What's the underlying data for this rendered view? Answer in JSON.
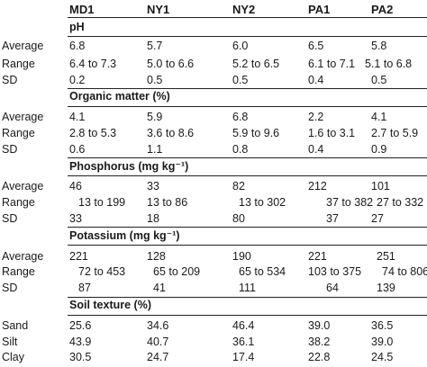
{
  "columns": [
    "MD1",
    "NY1",
    "NY2",
    "PA1",
    "PA2"
  ],
  "sections": [
    {
      "title": "pH",
      "rows": [
        {
          "label": "Average",
          "cells": [
            "6.8",
            "5.7",
            "6.0",
            "6.5",
            "5.8"
          ]
        },
        {
          "label": "Range",
          "cells": [
            "6.4 to 7.3",
            "5.0 to 6.6",
            "5.2 to 6.5",
            "6.1 to 7.1",
            "5.1 to 6.8"
          ]
        },
        {
          "label": "SD",
          "cells": [
            "0.2",
            "0.5",
            "0.5",
            "0.4",
            "0.5"
          ]
        }
      ]
    },
    {
      "title": "Organic matter (%)",
      "rows": [
        {
          "label": "Average",
          "cells": [
            "4.1",
            "5.9",
            "6.8",
            "2.2",
            "4.1"
          ]
        },
        {
          "label": "Range",
          "cells": [
            "2.8 to 5.3",
            "3.6 to 8.6",
            "5.9 to 9.6",
            "1.6 to 3.1",
            "2.7 to 5.9"
          ]
        },
        {
          "label": "SD",
          "cells": [
            "0.6",
            "1.1",
            "0.8",
            "0.4",
            "0.9"
          ]
        }
      ]
    },
    {
      "title": "Phosphorus (mg kg⁻¹)",
      "rows": [
        {
          "label": "Average",
          "cells": [
            "46",
            "33",
            "82",
            "212",
            "101"
          ]
        },
        {
          "label": "Range",
          "cells": [
            "13 to 199",
            "13 to 86",
            "13 to 302",
            "37 to 382",
            "27 to 332"
          ]
        },
        {
          "label": "SD",
          "cells": [
            "33",
            "18",
            "80",
            "37",
            "27"
          ]
        }
      ]
    },
    {
      "title": "Potassium (mg kg⁻¹)",
      "rows": [
        {
          "label": "Average",
          "cells": [
            "221",
            "128",
            "190",
            "221",
            "251"
          ]
        },
        {
          "label": "Range",
          "cells": [
            "72 to 453",
            "65 to 209",
            "65 to 534",
            "103 to 375",
            "74 to 806"
          ]
        },
        {
          "label": "SD",
          "cells": [
            "87",
            "41",
            "111",
            "64",
            "139"
          ]
        }
      ]
    },
    {
      "title": "Soil texture (%)",
      "rows": [
        {
          "label": "Sand",
          "cells": [
            "25.6",
            "34.6",
            "46.4",
            "39.0",
            "36.5"
          ]
        },
        {
          "label": "Silt",
          "cells": [
            "43.9",
            "40.7",
            "36.1",
            "38.2",
            "39.0"
          ]
        },
        {
          "label": "Clay",
          "cells": [
            "30.5",
            "24.7",
            "17.4",
            "22.8",
            "24.5"
          ]
        }
      ]
    }
  ]
}
